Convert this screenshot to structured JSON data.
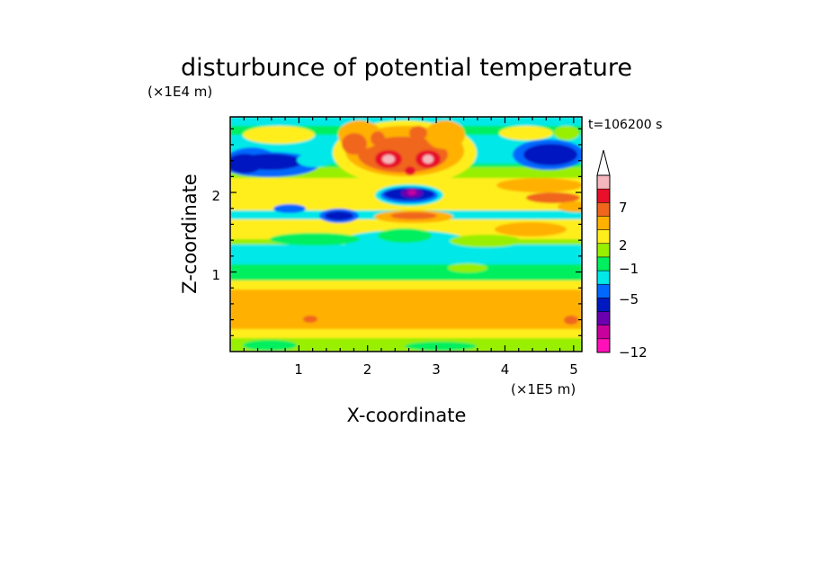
{
  "chart_data": {
    "type": "heatmap",
    "title": "disturbunce of potential temperature",
    "xlabel": "X-coordinate",
    "ylabel": "Z-coordinate",
    "x_unit": "(×1E5 m)",
    "y_unit": "(×1E4 m)",
    "time_label": "t=106200 s",
    "xlim": [
      0,
      5.12
    ],
    "ylim": [
      0,
      2.95
    ],
    "x_ticks": [
      "1",
      "2",
      "3",
      "4",
      "5"
    ],
    "y_ticks": [
      "1",
      "2"
    ],
    "colorbar": {
      "tick_labels": [
        "7",
        "2",
        "−1",
        "−5",
        "−12"
      ],
      "colors": [
        "#f5b7be",
        "#e8102a",
        "#f0661c",
        "#ffb000",
        "#ffee1e",
        "#98ef00",
        "#00ef5e",
        "#00e8e8",
        "#0068ff",
        "#0018c0",
        "#6a00b0",
        "#c8009c",
        "#ff10b8"
      ]
    },
    "field_colors": {
      "strong_cold": "#0018c0",
      "cold": "#0068ff",
      "cool": "#00e8e8",
      "neutral": "#00ef5e",
      "slight_warm": "#98ef00",
      "mild_warm": "#ffee1e",
      "warm": "#ffb000",
      "hot": "#f0661c",
      "very_hot": "#e8102a",
      "extreme_hot": "#f5b7be",
      "extreme_cold": "#6a00b0",
      "very_extreme_cold": "#c8009c"
    }
  }
}
